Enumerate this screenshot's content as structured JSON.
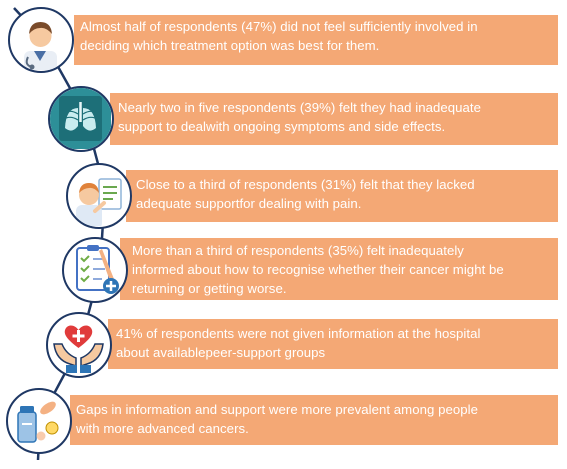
{
  "items": [
    {
      "icon": "doctor-icon",
      "line1": "Almost half of respondents (47%) did not feel sufficiently involved in",
      "line2": "deciding which treatment option was best for them."
    },
    {
      "icon": "lungs-xray-icon",
      "line1": "Nearly two in five respondents (39%) felt they had inadequate",
      "line2": "support to dealwith ongoing symptoms and side effects."
    },
    {
      "icon": "doctor-chart-icon",
      "line1": "Close to a third of respondents (31%) felt that they lacked",
      "line2": "adequate supportfor dealing with pain."
    },
    {
      "icon": "medical-checklist-icon",
      "line1": "More than a third of respondents (35%) felt inadequately",
      "line2": "informed about how to recognise whether their cancer might be",
      "line3": "returning or getting worse."
    },
    {
      "icon": "hands-heart-icon",
      "line1": "41% of respondents were not given information at the hospital",
      "line2": "about availablepeer-support groups"
    },
    {
      "icon": "medicine-pills-icon",
      "line1": "Gaps in information and support were more prevalent among people",
      "line2": "with more advanced cancers."
    }
  ],
  "colors": {
    "bar": "#f4a875",
    "line": "#1f3864",
    "text": "#ffffff"
  }
}
